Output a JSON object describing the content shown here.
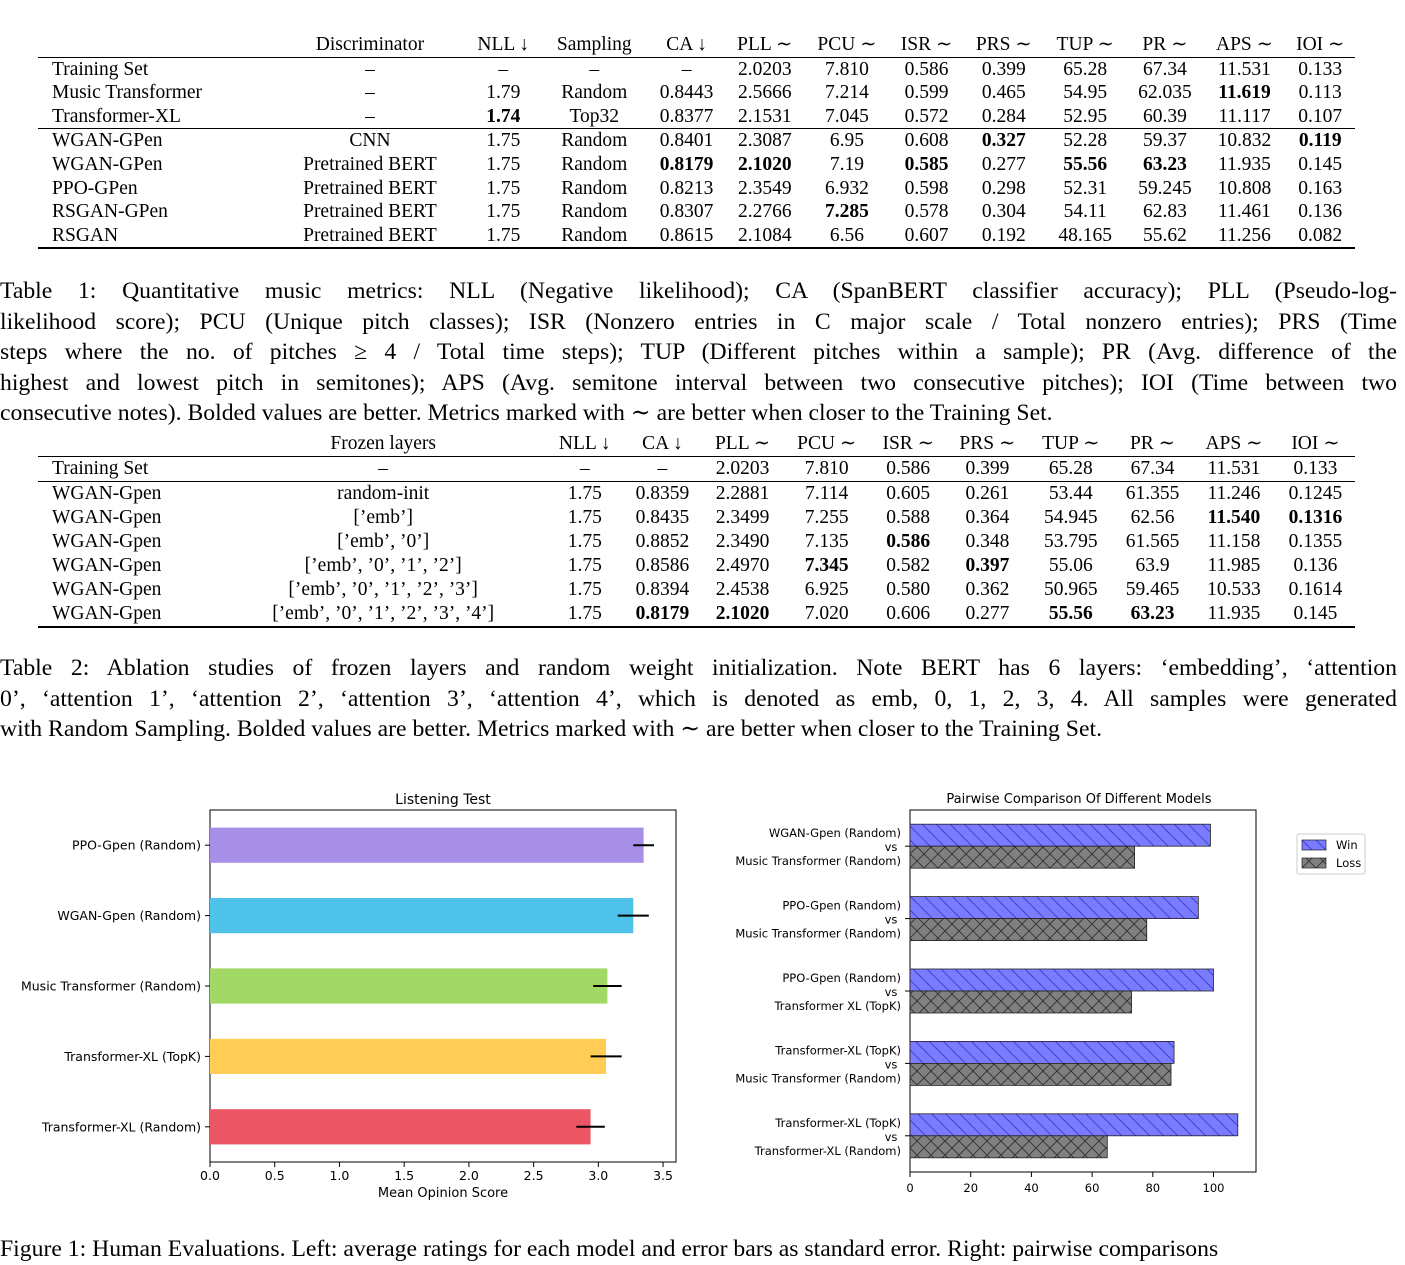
{
  "table1": {
    "headers": [
      "",
      "Discriminator",
      "NLL ↓",
      "Sampling",
      "CA ↓",
      "PLL ∼",
      "PCU ∼",
      "ISR ∼",
      "PRS ∼",
      "TUP ∼",
      "PR ∼",
      "APS ∼",
      "IOI ∼"
    ],
    "rows": [
      [
        "Training Set",
        "–",
        "–",
        "–",
        "–",
        "2.0203",
        "7.810",
        "0.586",
        "0.399",
        "65.28",
        "67.34",
        "11.531",
        "0.133"
      ],
      [
        "Music Transformer",
        "–",
        "1.79",
        "Random",
        "0.8443",
        "2.5666",
        "7.214",
        "0.599",
        "0.465",
        "54.95",
        "62.035",
        "11.619",
        "0.113"
      ],
      [
        "Transformer-XL",
        "–",
        "1.74",
        "Top32",
        "0.8377",
        "2.1531",
        "7.045",
        "0.572",
        "0.284",
        "52.95",
        "60.39",
        "11.117",
        "0.107"
      ],
      [
        "WGAN-GPen",
        "CNN",
        "1.75",
        "Random",
        "0.8401",
        "2.3087",
        "6.95",
        "0.608",
        "0.327",
        "52.28",
        "59.37",
        "10.832",
        "0.119"
      ],
      [
        "WGAN-GPen",
        "Pretrained BERT",
        "1.75",
        "Random",
        "0.8179",
        "2.1020",
        "7.19",
        "0.585",
        "0.277",
        "55.56",
        "63.23",
        "11.935",
        "0.145"
      ],
      [
        "PPO-GPen",
        "Pretrained BERT",
        "1.75",
        "Random",
        "0.8213",
        "2.3549",
        "6.932",
        "0.598",
        "0.298",
        "52.31",
        "59.245",
        "10.808",
        "0.163"
      ],
      [
        "RSGAN-GPen",
        "Pretrained BERT",
        "1.75",
        "Random",
        "0.8307",
        "2.2766",
        "7.285",
        "0.578",
        "0.304",
        "54.11",
        "62.83",
        "11.461",
        "0.136"
      ],
      [
        "RSGAN",
        "Pretrained BERT",
        "1.75",
        "Random",
        "0.8615",
        "2.1084",
        "6.56",
        "0.607",
        "0.192",
        "48.165",
        "55.62",
        "11.256",
        "0.082"
      ]
    ],
    "bold": [
      [
        1,
        11
      ],
      [
        2,
        2
      ],
      [
        3,
        8
      ],
      [
        3,
        12
      ],
      [
        4,
        4
      ],
      [
        4,
        5
      ],
      [
        4,
        7
      ],
      [
        4,
        9
      ],
      [
        4,
        10
      ],
      [
        6,
        6
      ]
    ]
  },
  "caption1": [
    "Table 1: Quantitative music metrics: NLL (Negative likelihood); CA (SpanBERT classifier accuracy); PLL (Pseudo-log-",
    "likelihood score); PCU (Unique pitch classes); ISR (Nonzero entries in C major scale / Total nonzero entries); PRS (Time",
    "steps where the no. of pitches ≥ 4 / Total time steps); TUP (Different pitches within a sample); PR (Avg. difference of the",
    "highest and lowest pitch in semitones); APS (Avg. semitone interval between two consecutive pitches); IOI (Time between two",
    "consecutive notes). Bolded values are better. Metrics marked with ∼ are better when closer to the Training Set."
  ],
  "table2": {
    "headers": [
      "",
      "Frozen layers",
      "NLL ↓",
      "CA ↓",
      "PLL ∼",
      "PCU ∼",
      "ISR ∼",
      "PRS ∼",
      "TUP ∼",
      "PR ∼",
      "APS ∼",
      "IOI ∼"
    ],
    "rows": [
      [
        "Training Set",
        "–",
        "–",
        "–",
        "2.0203",
        "7.810",
        "0.586",
        "0.399",
        "65.28",
        "67.34",
        "11.531",
        "0.133"
      ],
      [
        "WGAN-Gpen",
        "random-init",
        "1.75",
        "0.8359",
        "2.2881",
        "7.114",
        "0.605",
        "0.261",
        "53.44",
        "61.355",
        "11.246",
        "0.1245"
      ],
      [
        "WGAN-Gpen",
        "[’emb’]",
        "1.75",
        "0.8435",
        "2.3499",
        "7.255",
        "0.588",
        "0.364",
        "54.945",
        "62.56",
        "11.540",
        "0.1316"
      ],
      [
        "WGAN-Gpen",
        "[’emb’, ’0’]",
        "1.75",
        "0.8852",
        "2.3490",
        "7.135",
        "0.586",
        "0.348",
        "53.795",
        "61.565",
        "11.158",
        "0.1355"
      ],
      [
        "WGAN-Gpen",
        "[’emb’, ’0’, ’1’, ’2’]",
        "1.75",
        "0.8586",
        "2.4970",
        "7.345",
        "0.582",
        "0.397",
        "55.06",
        "63.9",
        "11.985",
        "0.136"
      ],
      [
        "WGAN-Gpen",
        "[’emb’, ’0’, ’1’, ’2’, ’3’]",
        "1.75",
        "0.8394",
        "2.4538",
        "6.925",
        "0.580",
        "0.362",
        "50.965",
        "59.465",
        "10.533",
        "0.1614"
      ],
      [
        "WGAN-Gpen",
        "[’emb’, ’0’, ’1’, ’2’, ’3’, ’4’]",
        "1.75",
        "0.8179",
        "2.1020",
        "7.020",
        "0.606",
        "0.277",
        "55.56",
        "63.23",
        "11.935",
        "0.145"
      ]
    ],
    "bold": [
      [
        2,
        10
      ],
      [
        2,
        11
      ],
      [
        3,
        6
      ],
      [
        4,
        5
      ],
      [
        4,
        7
      ],
      [
        6,
        3
      ],
      [
        6,
        4
      ],
      [
        6,
        8
      ],
      [
        6,
        9
      ]
    ]
  },
  "caption2": [
    "Table 2: Ablation studies of frozen layers and random weight initialization. Note BERT has 6 layers: ‘embedding’, ‘attention",
    "0’, ‘attention 1’, ‘attention 2’, ‘attention 3’, ‘attention 4’, which is denoted as emb, 0, 1, 2, 3, 4. All samples were generated",
    "with Random Sampling. Bolded values are better. Metrics marked with ∼ are better when closer to the Training Set."
  ],
  "chart_data": [
    {
      "type": "bar",
      "orientation": "horizontal",
      "title": "Listening Test",
      "xlabel": "Mean Opinion Score",
      "ylabel": "",
      "categories": [
        "PPO-Gpen (Random)",
        "WGAN-Gpen (Random)",
        "Music Transformer (Random)",
        "Transformer-XL (TopK)",
        "Transformer-XL (Random)"
      ],
      "values": [
        3.35,
        3.27,
        3.07,
        3.06,
        2.94
      ],
      "errors": [
        0.08,
        0.12,
        0.11,
        0.12,
        0.11
      ],
      "colors": [
        "#a78fe8",
        "#4ec2e8",
        "#a2d866",
        "#ffcc55",
        "#ec5564"
      ],
      "xlim": [
        0,
        3.6
      ],
      "xticks": [
        "0.0",
        "0.5",
        "1.0",
        "1.5",
        "2.0",
        "2.5",
        "3.0",
        "3.5"
      ],
      "grid": false
    },
    {
      "type": "bar",
      "orientation": "horizontal",
      "title": "Pairwise Comparison Of Different Models",
      "categories": [
        [
          "WGAN-Gpen (Random)",
          "vs",
          "Music Transformer (Random)"
        ],
        [
          "PPO-Gpen (Random)",
          "vs",
          "Music Transformer (Random)"
        ],
        [
          "PPO-Gpen (Random)",
          "vs",
          "Transformer XL (TopK)"
        ],
        [
          "Transformer-XL (TopK)",
          "vs",
          "Music Transformer (Random)"
        ],
        [
          "Transformer-XL (TopK)",
          "vs",
          "Transformer-XL (Random)"
        ]
      ],
      "series": [
        {
          "name": "Win",
          "values": [
            99,
            95,
            100,
            87,
            108
          ],
          "color": "#7b7bff"
        },
        {
          "name": "Loss",
          "values": [
            74,
            78,
            73,
            86,
            65
          ],
          "color": "#808080"
        }
      ],
      "xlim": [
        0,
        114
      ],
      "xticks": [
        "0",
        "20",
        "40",
        "60",
        "80",
        "100"
      ],
      "legend": "right",
      "grid": false
    }
  ],
  "figure_caption": "Figure 1: Human Evaluations. Left: average ratings for each model and error bars as standard error. Right: pairwise comparisons"
}
